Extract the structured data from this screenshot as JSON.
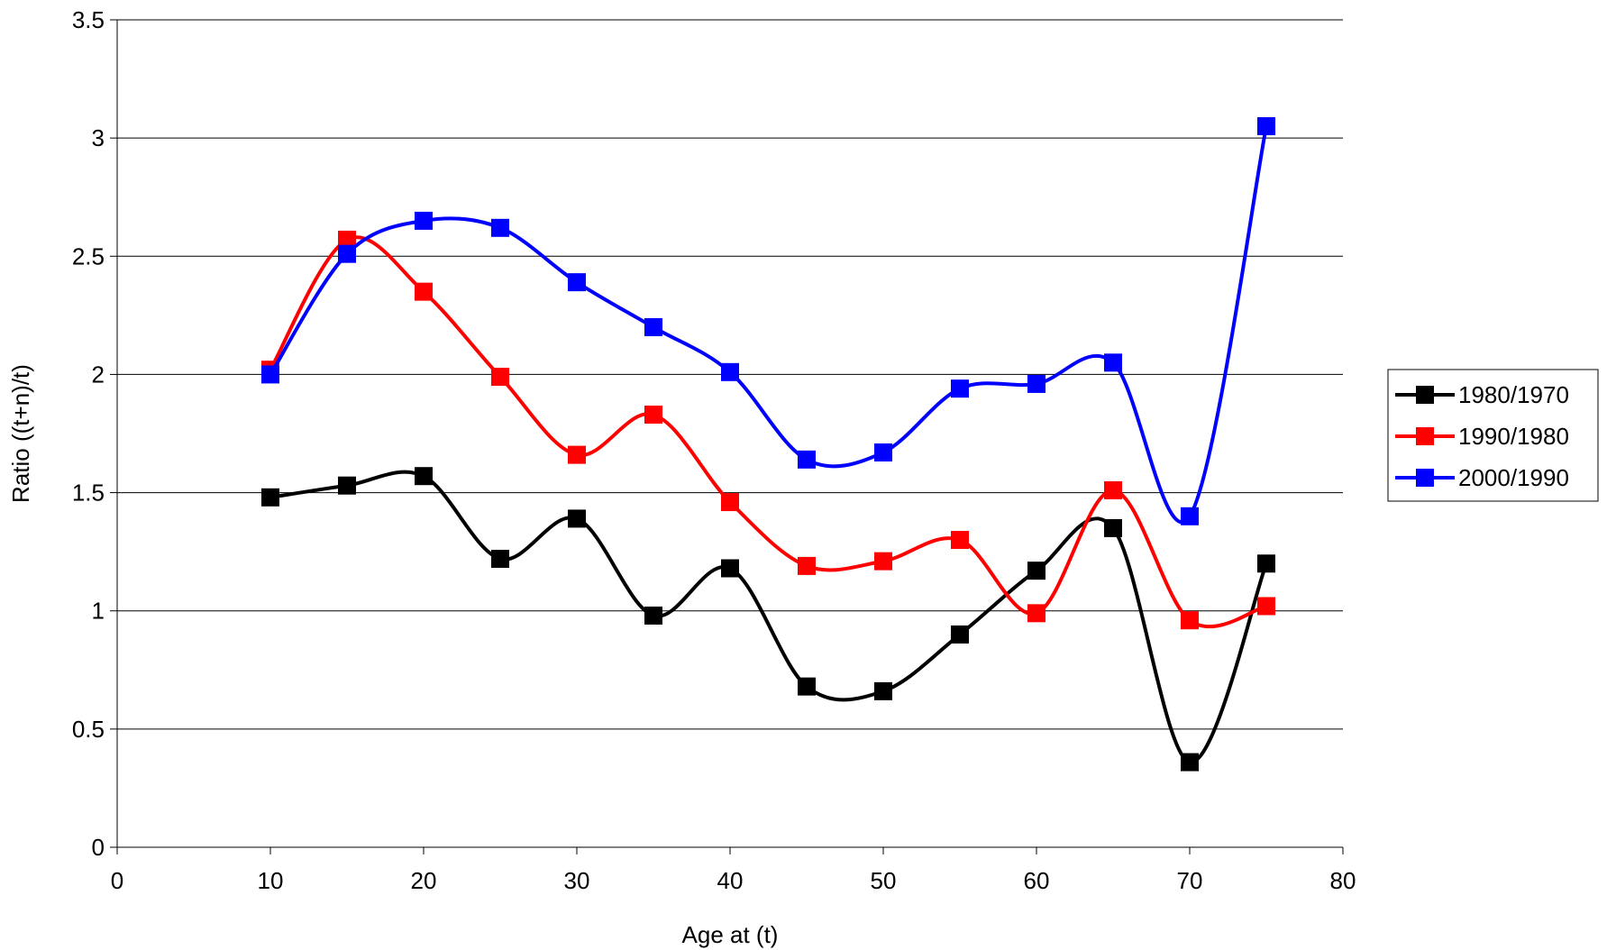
{
  "chart_data": {
    "type": "line",
    "title": "",
    "xlabel": "Age at (t)",
    "ylabel": "Ratio ((t+n)/t)",
    "xlim": [
      0,
      80
    ],
    "ylim": [
      0,
      3.5
    ],
    "x_ticks": [
      0,
      10,
      20,
      30,
      40,
      50,
      60,
      70,
      80
    ],
    "y_ticks": [
      0,
      0.5,
      1,
      1.5,
      2,
      2.5,
      3,
      3.5
    ],
    "x_tick_labels": [
      "0",
      "10",
      "20",
      "30",
      "40",
      "50",
      "60",
      "70",
      "80"
    ],
    "y_tick_labels": [
      "0",
      "0.5",
      "1",
      "1.5",
      "2",
      "2.5",
      "3",
      "3.5"
    ],
    "grid": "horizontal major gridlines",
    "legend_position": "right",
    "x": [
      10,
      15,
      20,
      25,
      30,
      35,
      40,
      45,
      50,
      55,
      60,
      65,
      70,
      75
    ],
    "series": [
      {
        "name": "1980/1970",
        "color": "#000000",
        "marker": "square",
        "values": [
          1.48,
          1.53,
          1.57,
          1.22,
          1.39,
          0.98,
          1.18,
          0.68,
          0.66,
          0.9,
          1.17,
          1.35,
          0.36,
          1.2
        ]
      },
      {
        "name": "1990/1980",
        "color": "#ff0000",
        "marker": "square",
        "values": [
          2.02,
          2.57,
          2.35,
          1.99,
          1.66,
          1.83,
          1.46,
          1.19,
          1.21,
          1.3,
          0.99,
          1.51,
          0.96,
          1.02
        ]
      },
      {
        "name": "2000/1990",
        "color": "#0000ff",
        "marker": "square",
        "values": [
          2.0,
          2.51,
          2.65,
          2.62,
          2.39,
          2.2,
          2.01,
          1.64,
          1.67,
          1.94,
          1.96,
          2.05,
          1.4,
          3.05
        ]
      }
    ]
  }
}
